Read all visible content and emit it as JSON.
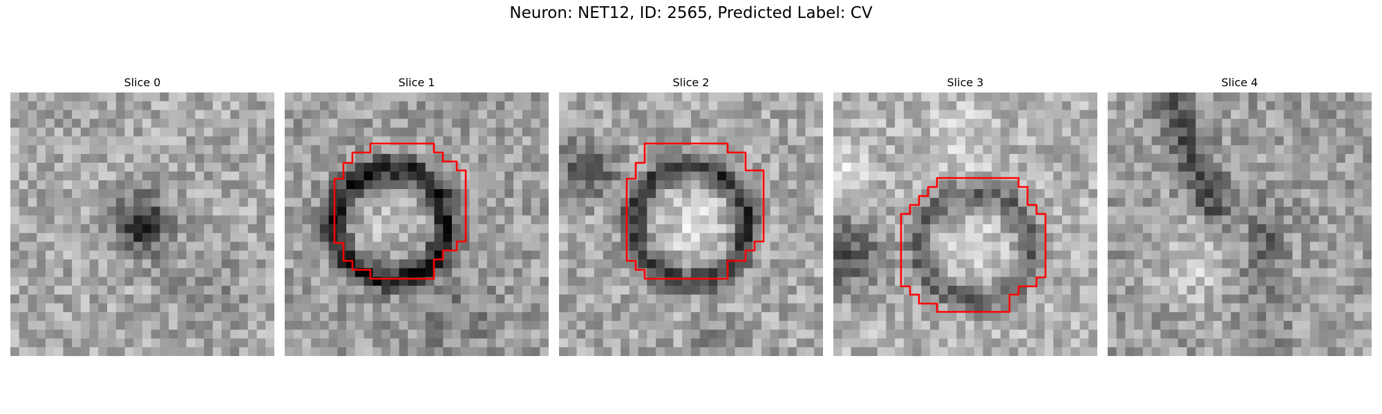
{
  "figure": {
    "title": "Neuron: NET12, ID: 2565, Predicted Label: CV"
  },
  "panels": [
    {
      "title": "Slice 0",
      "image": "grayscale-em-patch",
      "has_contour": false,
      "feature": "dark-blob"
    },
    {
      "title": "Slice 1",
      "image": "grayscale-em-patch",
      "has_contour": true,
      "feature": "dark-ring"
    },
    {
      "title": "Slice 2",
      "image": "grayscale-em-patch",
      "has_contour": true,
      "feature": "dark-ring"
    },
    {
      "title": "Slice 3",
      "image": "grayscale-em-patch",
      "has_contour": true,
      "feature": "faint-ring"
    },
    {
      "title": "Slice 4",
      "image": "grayscale-em-patch",
      "has_contour": false,
      "feature": "noise"
    }
  ],
  "colors": {
    "contour": "#ff0000",
    "background": "#ffffff"
  }
}
